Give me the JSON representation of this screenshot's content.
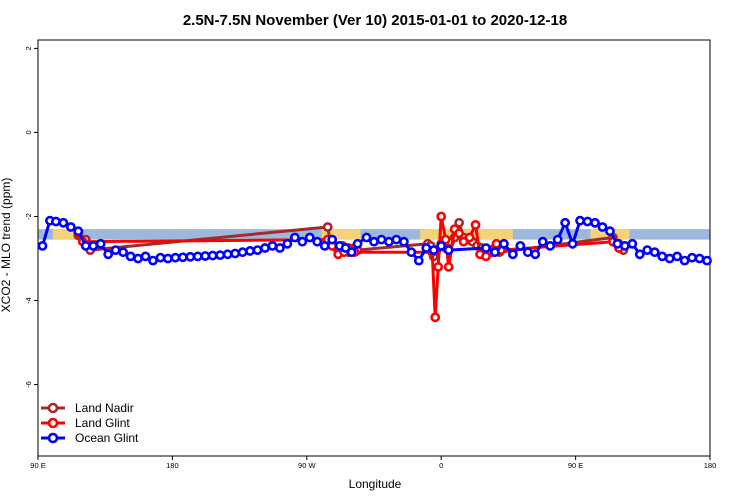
{
  "chart_data": {
    "type": "line",
    "title": "2.5N-7.5N November (Ver 10)   2015-01-01 to 2020-12-18",
    "xlabel": "Longitude",
    "ylabel": "XCO2 - MLO trend (ppm)",
    "xlim": [
      0,
      450
    ],
    "ylim": [
      -7.7,
      2.2
    ],
    "x_ticks": [
      {
        "value": 0,
        "label": "90 E"
      },
      {
        "value": 90,
        "label": "180"
      },
      {
        "value": 180,
        "label": "90 W"
      },
      {
        "value": 270,
        "label": "0"
      },
      {
        "value": 360,
        "label": "90 E"
      },
      {
        "value": 450,
        "label": "180"
      }
    ],
    "y_ticks": [
      {
        "value": 2,
        "label": "2"
      },
      {
        "value": 0,
        "label": "0"
      },
      {
        "value": -2,
        "label": "-2"
      },
      {
        "value": -4,
        "label": "-4"
      },
      {
        "value": -6,
        "label": "-6"
      }
    ],
    "grid": false,
    "legend_position": "bottom-left",
    "band": {
      "y_min": -2.55,
      "y_max": -2.3,
      "color": "#9db8dd"
    },
    "land_patches": [
      {
        "x_min": 10,
        "x_max": 30
      },
      {
        "x_min": 190,
        "x_max": 216
      },
      {
        "x_min": 256,
        "x_max": 318
      },
      {
        "x_min": 370,
        "x_max": 396
      }
    ],
    "land_patch_color": "#f5d27a",
    "series": [
      {
        "name": "Land Nadir",
        "color": "#a52a2a",
        "points": [
          [
            27,
            -2.45
          ],
          [
            32,
            -2.55
          ],
          [
            35,
            -2.8
          ],
          [
            194,
            -2.25
          ],
          [
            196,
            -2.65
          ],
          [
            200,
            -2.75
          ],
          [
            204,
            -2.7
          ],
          [
            208,
            -2.85
          ],
          [
            212,
            -2.75
          ],
          [
            214,
            -2.8
          ],
          [
            261,
            -2.65
          ],
          [
            263,
            -2.7
          ],
          [
            265,
            -2.95
          ],
          [
            267,
            -2.8
          ],
          [
            270,
            -2.65
          ],
          [
            273,
            -2.75
          ],
          [
            276,
            -2.6
          ],
          [
            279,
            -2.5
          ],
          [
            282,
            -2.15
          ],
          [
            285,
            -2.5
          ],
          [
            288,
            -2.55
          ],
          [
            291,
            -2.6
          ],
          [
            294,
            -2.7
          ],
          [
            297,
            -2.75
          ],
          [
            300,
            -2.8
          ],
          [
            303,
            -2.8
          ],
          [
            306,
            -2.75
          ],
          [
            309,
            -2.85
          ],
          [
            385,
            -2.5
          ],
          [
            389,
            -2.65
          ],
          [
            392,
            -2.8
          ]
        ]
      },
      {
        "name": "Land Glint",
        "color": "#ff0000",
        "points": [
          [
            27,
            -2.4
          ],
          [
            30,
            -2.6
          ],
          [
            194,
            -2.55
          ],
          [
            197,
            -2.7
          ],
          [
            201,
            -2.9
          ],
          [
            205,
            -2.85
          ],
          [
            208,
            -2.75
          ],
          [
            212,
            -2.85
          ],
          [
            264,
            -2.85
          ],
          [
            266,
            -4.4
          ],
          [
            268,
            -3.2
          ],
          [
            270,
            -2.0
          ],
          [
            273,
            -2.55
          ],
          [
            275,
            -3.2
          ],
          [
            279,
            -2.3
          ],
          [
            282,
            -2.4
          ],
          [
            285,
            -2.6
          ],
          [
            289,
            -2.5
          ],
          [
            293,
            -2.2
          ],
          [
            296,
            -2.9
          ],
          [
            300,
            -2.95
          ],
          [
            304,
            -2.85
          ],
          [
            307,
            -2.65
          ],
          [
            310,
            -2.8
          ],
          [
            385,
            -2.6
          ],
          [
            389,
            -2.75
          ]
        ]
      },
      {
        "name": "Ocean Glint",
        "color": "#0000ff",
        "points": [
          [
            3,
            -2.7
          ],
          [
            8,
            -2.1
          ],
          [
            12,
            -2.12
          ],
          [
            17,
            -2.15
          ],
          [
            22,
            -2.25
          ],
          [
            27,
            -2.35
          ],
          [
            32,
            -2.7
          ],
          [
            37,
            -2.7
          ],
          [
            42,
            -2.65
          ],
          [
            47,
            -2.9
          ],
          [
            52,
            -2.8
          ],
          [
            57,
            -2.85
          ],
          [
            62,
            -2.95
          ],
          [
            67,
            -3.0
          ],
          [
            72,
            -2.95
          ],
          [
            77,
            -3.05
          ],
          [
            82,
            -2.98
          ],
          [
            87,
            -3.0
          ],
          [
            92,
            -2.98
          ],
          [
            97,
            -2.97
          ],
          [
            102,
            -2.96
          ],
          [
            107,
            -2.95
          ],
          [
            112,
            -2.94
          ],
          [
            117,
            -2.93
          ],
          [
            122,
            -2.92
          ],
          [
            127,
            -2.9
          ],
          [
            132,
            -2.88
          ],
          [
            137,
            -2.85
          ],
          [
            142,
            -2.82
          ],
          [
            147,
            -2.8
          ],
          [
            152,
            -2.75
          ],
          [
            157,
            -2.7
          ],
          [
            162,
            -2.75
          ],
          [
            167,
            -2.65
          ],
          [
            172,
            -2.5
          ],
          [
            177,
            -2.6
          ],
          [
            182,
            -2.5
          ],
          [
            187,
            -2.6
          ],
          [
            192,
            -2.7
          ],
          [
            197,
            -2.55
          ],
          [
            202,
            -2.7
          ],
          [
            206,
            -2.75
          ],
          [
            210,
            -2.85
          ],
          [
            214,
            -2.65
          ],
          [
            220,
            -2.5
          ],
          [
            225,
            -2.6
          ],
          [
            230,
            -2.55
          ],
          [
            235,
            -2.6
          ],
          [
            240,
            -2.55
          ],
          [
            245,
            -2.6
          ],
          [
            250,
            -2.85
          ],
          [
            255,
            -3.05
          ],
          [
            260,
            -2.75
          ],
          [
            265,
            -2.8
          ],
          [
            270,
            -2.7
          ],
          [
            275,
            -2.8
          ],
          [
            300,
            -2.75
          ],
          [
            306,
            -2.85
          ],
          [
            312,
            -2.65
          ],
          [
            318,
            -2.9
          ],
          [
            323,
            -2.7
          ],
          [
            328,
            -2.85
          ],
          [
            333,
            -2.9
          ],
          [
            338,
            -2.6
          ],
          [
            343,
            -2.7
          ],
          [
            348,
            -2.55
          ],
          [
            353,
            -2.15
          ],
          [
            358,
            -2.65
          ],
          [
            363,
            -2.1
          ],
          [
            368,
            -2.12
          ],
          [
            373,
            -2.15
          ],
          [
            378,
            -2.25
          ],
          [
            383,
            -2.35
          ],
          [
            388,
            -2.65
          ],
          [
            393,
            -2.7
          ],
          [
            398,
            -2.65
          ],
          [
            403,
            -2.9
          ],
          [
            408,
            -2.8
          ],
          [
            413,
            -2.85
          ],
          [
            418,
            -2.95
          ],
          [
            423,
            -3.0
          ],
          [
            428,
            -2.95
          ],
          [
            433,
            -3.05
          ],
          [
            438,
            -2.98
          ],
          [
            443,
            -3.0
          ],
          [
            448,
            -3.05
          ]
        ]
      }
    ]
  }
}
